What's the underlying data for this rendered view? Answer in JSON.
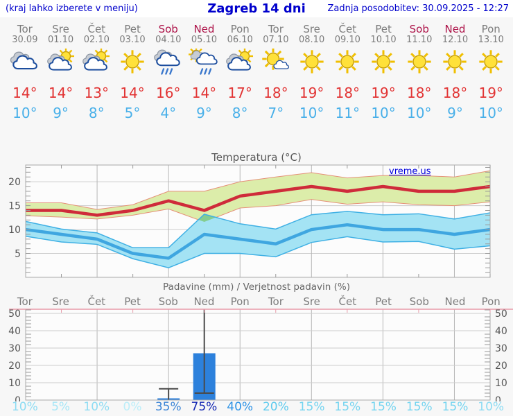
{
  "header": {
    "left_note": "(kraj lahko izberete v meniju)",
    "title": "Zagreb 14 dni",
    "updated": "Zadnja posodobitev: 30.09.2025 - 12:27"
  },
  "days": [
    {
      "name": "Tor",
      "date": "30.09",
      "weekend": false,
      "icon": "cloudy",
      "high": "14",
      "low": "10"
    },
    {
      "name": "Sre",
      "date": "01.10",
      "weekend": false,
      "icon": "partly",
      "high": "14",
      "low": "9"
    },
    {
      "name": "Čet",
      "date": "02.10",
      "weekend": false,
      "icon": "partly",
      "high": "13",
      "low": "8"
    },
    {
      "name": "Pet",
      "date": "03.10",
      "weekend": false,
      "icon": "sunny",
      "high": "14",
      "low": "5"
    },
    {
      "name": "Sob",
      "date": "04.10",
      "weekend": true,
      "icon": "rain",
      "high": "16",
      "low": "4"
    },
    {
      "name": "Ned",
      "date": "05.10",
      "weekend": true,
      "icon": "sunrain",
      "high": "14",
      "low": "9"
    },
    {
      "name": "Pon",
      "date": "06.10",
      "weekend": false,
      "icon": "partly",
      "high": "17",
      "low": "8"
    },
    {
      "name": "Tor",
      "date": "07.10",
      "weekend": false,
      "icon": "mostlysunny",
      "high": "18",
      "low": "7"
    },
    {
      "name": "Sre",
      "date": "08.10",
      "weekend": false,
      "icon": "sunny",
      "high": "19",
      "low": "10"
    },
    {
      "name": "Čet",
      "date": "09.10",
      "weekend": false,
      "icon": "sunny",
      "high": "18",
      "low": "11"
    },
    {
      "name": "Pet",
      "date": "10.10",
      "weekend": false,
      "icon": "sunny",
      "high": "19",
      "low": "10"
    },
    {
      "name": "Sob",
      "date": "11.10",
      "weekend": true,
      "icon": "sunny",
      "high": "18",
      "low": "10"
    },
    {
      "name": "Ned",
      "date": "12.10",
      "weekend": true,
      "icon": "sunny",
      "high": "18",
      "low": "9"
    },
    {
      "name": "Pon",
      "date": "13.10",
      "weekend": false,
      "icon": "sunny",
      "high": "19",
      "low": "10"
    }
  ],
  "chart_data": [
    {
      "type": "line",
      "title": "Temperatura (°C)",
      "watermark": "vreme.us",
      "categories": [
        "Tor",
        "Sre",
        "Čet",
        "Pet",
        "Sob",
        "Ned",
        "Pon",
        "Tor",
        "Sre",
        "Čet",
        "Pet",
        "Sob",
        "Ned",
        "Pon"
      ],
      "ylim": [
        0,
        23.5
      ],
      "yticks": [
        5,
        10,
        15,
        20
      ],
      "grid": true,
      "series": [
        {
          "name": "max temperature",
          "color": "#cf2b3a",
          "values": [
            14,
            14,
            13,
            14,
            16,
            14,
            17,
            18,
            19,
            18,
            19,
            18,
            18,
            19
          ]
        },
        {
          "name": "min temperature",
          "color": "#3fa6e0",
          "values": [
            10,
            9,
            8,
            5,
            4,
            9,
            8,
            7,
            10,
            11,
            10,
            10,
            9,
            10
          ]
        },
        {
          "name": "max range upper",
          "values": [
            15.6,
            15.6,
            14.2,
            15.2,
            18,
            18,
            20,
            21,
            21.9,
            20.8,
            21.3,
            21.3,
            21,
            22.3
          ]
        },
        {
          "name": "max range lower",
          "values": [
            12.9,
            12.6,
            12.2,
            13,
            14.3,
            11.6,
            14.5,
            15,
            16.3,
            15.3,
            15.8,
            15.2,
            15,
            15.8
          ]
        },
        {
          "name": "min range upper",
          "values": [
            11.7,
            10.1,
            9.3,
            6.2,
            6.2,
            13.2,
            11.2,
            10.1,
            13.1,
            13.8,
            13.1,
            13.3,
            12.2,
            13.5
          ]
        },
        {
          "name": "min range lower",
          "values": [
            8.6,
            7.4,
            6.9,
            3.9,
            2,
            5,
            5,
            4.3,
            7.3,
            8.5,
            7.4,
            7.5,
            5.9,
            6.6
          ]
        }
      ],
      "band_colors": {
        "max": "#dcedaa",
        "max_edge": "#e59078",
        "min": "#a4e3f4",
        "min_edge": "#3fb0e4",
        "overlap": "#84cd90"
      }
    },
    {
      "type": "bar",
      "title": "Padavine (mm) / Verjetnost padavin (%)",
      "categories": [
        "Tor",
        "Sre",
        "Čet",
        "Pet",
        "Sob",
        "Ned",
        "Pon",
        "Tor",
        "Sre",
        "Čet",
        "Pet",
        "Sob",
        "Ned",
        "Pon"
      ],
      "ylim": [
        0,
        52.4
      ],
      "yticks": [
        0,
        10,
        20,
        30,
        40,
        50
      ],
      "grid": true,
      "bar_color": "#2d81dc",
      "values": [
        0,
        0,
        0,
        0,
        1,
        27,
        0,
        0,
        0,
        0,
        0,
        0,
        0,
        0
      ],
      "whiskers": [
        null,
        null,
        null,
        null,
        {
          "low": 0,
          "high": 6.5
        },
        {
          "low": 4,
          "high": 55
        },
        null,
        null,
        null,
        null,
        null,
        null,
        null,
        null
      ],
      "probabilities": [
        "10%",
        "5%",
        "10%",
        "0%",
        "35%",
        "75%",
        "40%",
        "20%",
        "15%",
        "15%",
        "15%",
        "15%",
        "15%",
        "10%"
      ],
      "prob_colors": [
        "#8edcf3",
        "#a6e6f7",
        "#8edcf3",
        "#bceef9",
        "#3c85d6",
        "#1225b2",
        "#2e93e6",
        "#60cbee",
        "#74d4f0",
        "#74d4f0",
        "#74d4f0",
        "#74d4f0",
        "#74d4f0",
        "#8edcf3"
      ]
    }
  ]
}
